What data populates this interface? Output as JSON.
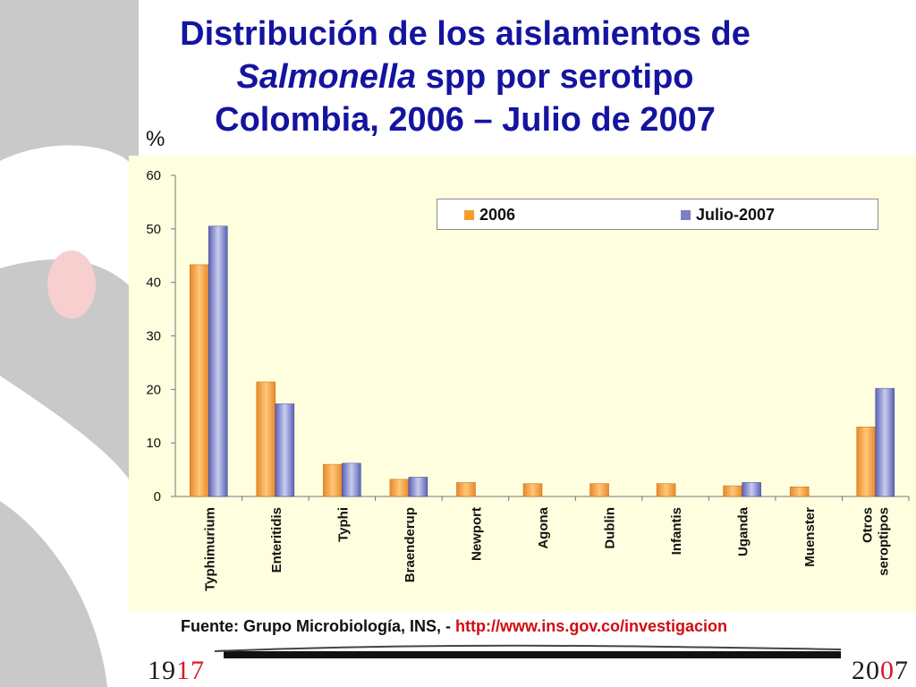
{
  "title": {
    "line1": "Distribución de los aislamientos de",
    "line2_italic": "Salmonella",
    "line2_rest": " spp por serotipo",
    "line3": "Colombia, 2006 – Julio de 2007"
  },
  "y_unit": "%",
  "legend": {
    "s1": "2006",
    "s2": "Julio-2007"
  },
  "colors": {
    "s1": "#f59d2a",
    "s2": "#7a7fc4",
    "title": "#1414a0",
    "plot_bg": "#ffffdf",
    "link": "#d10b10"
  },
  "chart_data": {
    "type": "bar",
    "ylim": [
      0,
      60
    ],
    "yticks": [
      0,
      10,
      20,
      30,
      40,
      50,
      60
    ],
    "categories": [
      [
        "Typhimurium"
      ],
      [
        "Enteritidis"
      ],
      [
        "Typhi"
      ],
      [
        "Braenderup"
      ],
      [
        "Newport"
      ],
      [
        "Agona"
      ],
      [
        "Dublin"
      ],
      [
        "Infantis"
      ],
      [
        "Uganda"
      ],
      [
        "Muenster"
      ],
      [
        "Otros",
        "seroptipos"
      ]
    ],
    "series": [
      {
        "name": "2006",
        "values": [
          43.3,
          21.4,
          6.0,
          3.2,
          2.6,
          2.4,
          2.4,
          2.4,
          2.0,
          1.8,
          13.0
        ]
      },
      {
        "name": "Julio-2007",
        "values": [
          50.5,
          17.3,
          6.2,
          3.6,
          0,
          0,
          0,
          0,
          2.6,
          0,
          20.2
        ]
      }
    ],
    "legend_position": "top-right",
    "grid": false
  },
  "source": {
    "prefix": "Fuente: Grupo Microbiología,  INS, - ",
    "link": "http://www.ins.gov.co/investigacion"
  },
  "footer": {
    "left_a": "19",
    "left_b": "17",
    "right_a": "20",
    "right_b": "0",
    "right_c": "7"
  }
}
